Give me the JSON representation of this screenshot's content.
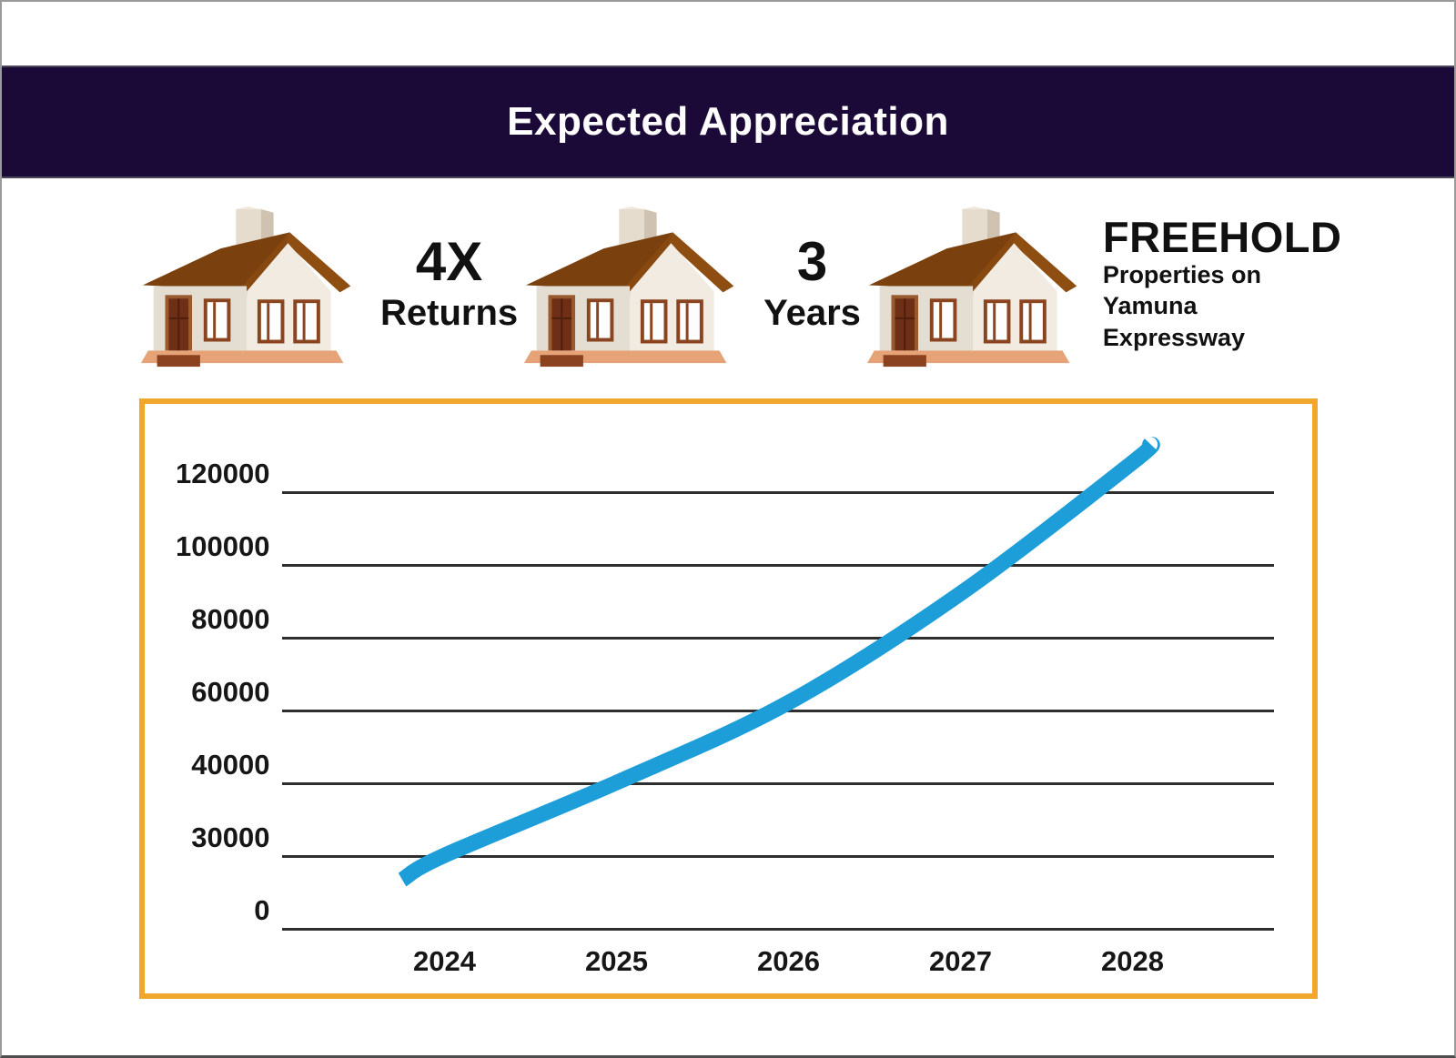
{
  "header": {
    "title": "Expected Appreciation",
    "bg_color": "#1b0a38",
    "text_color": "#ffffff"
  },
  "features": [
    {
      "icon": "house-icon",
      "value": "4X",
      "label": "Returns"
    },
    {
      "icon": "house-icon",
      "value": "3",
      "label": "Years"
    },
    {
      "icon": "house-icon",
      "value": "FREEHOLD",
      "label_lines": [
        "Properties on",
        "Yamuna",
        "Expressway"
      ]
    }
  ],
  "chart": {
    "border_color": "#f0a72e",
    "line_color": "#1d9ed9",
    "grid_color": "#2f2f2f"
  },
  "chart_data": {
    "type": "line",
    "title": "Expected Appreciation",
    "x": [
      2024,
      2025,
      2026,
      2027,
      2028
    ],
    "series": [
      {
        "name": "expected-property-value",
        "values": [
          30000,
          40000,
          62000,
          92000,
          128000
        ]
      }
    ],
    "y_tick_labels": [
      120000,
      100000,
      80000,
      60000,
      40000,
      30000,
      0
    ],
    "y_axis_nonuniform": true,
    "line_extends": {
      "start": {
        "x": 2023.75,
        "value": 20000
      },
      "end": {
        "x": 2028.1,
        "value": 133000
      }
    },
    "grid": "horizontal-only",
    "legend": "none",
    "line_color": "#1d9ed9"
  }
}
